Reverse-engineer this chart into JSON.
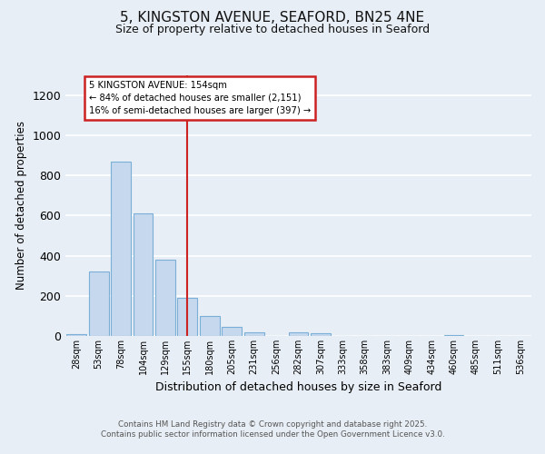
{
  "title_line1": "5, KINGSTON AVENUE, SEAFORD, BN25 4NE",
  "title_line2": "Size of property relative to detached houses in Seaford",
  "xlabel": "Distribution of detached houses by size in Seaford",
  "ylabel": "Number of detached properties",
  "categories": [
    "28sqm",
    "53sqm",
    "78sqm",
    "104sqm",
    "129sqm",
    "155sqm",
    "180sqm",
    "205sqm",
    "231sqm",
    "256sqm",
    "282sqm",
    "307sqm",
    "333sqm",
    "358sqm",
    "383sqm",
    "409sqm",
    "434sqm",
    "460sqm",
    "485sqm",
    "511sqm",
    "536sqm"
  ],
  "values": [
    10,
    320,
    870,
    610,
    380,
    190,
    100,
    45,
    20,
    0,
    20,
    15,
    0,
    0,
    0,
    0,
    0,
    5,
    0,
    0,
    0
  ],
  "bar_color": "#c6d8ee",
  "bar_edge_color": "#7ab0d8",
  "background_color": "#e8eef5",
  "plot_bg_color": "#e8eef5",
  "grid_color": "#ffffff",
  "red_line_index": 5,
  "red_line_color": "#cc2222",
  "annotation_text_line1": "5 KINGSTON AVENUE: 154sqm",
  "annotation_text_line2": "← 84% of detached houses are smaller (2,151)",
  "annotation_text_line3": "16% of semi-detached houses are larger (397) →",
  "annotation_box_facecolor": "#ffffff",
  "annotation_box_edgecolor": "#cc2222",
  "ylim": [
    0,
    1300
  ],
  "yticks": [
    0,
    200,
    400,
    600,
    800,
    1000,
    1200
  ],
  "footer_line1": "Contains HM Land Registry data © Crown copyright and database right 2025.",
  "footer_line2": "Contains public sector information licensed under the Open Government Licence v3.0."
}
